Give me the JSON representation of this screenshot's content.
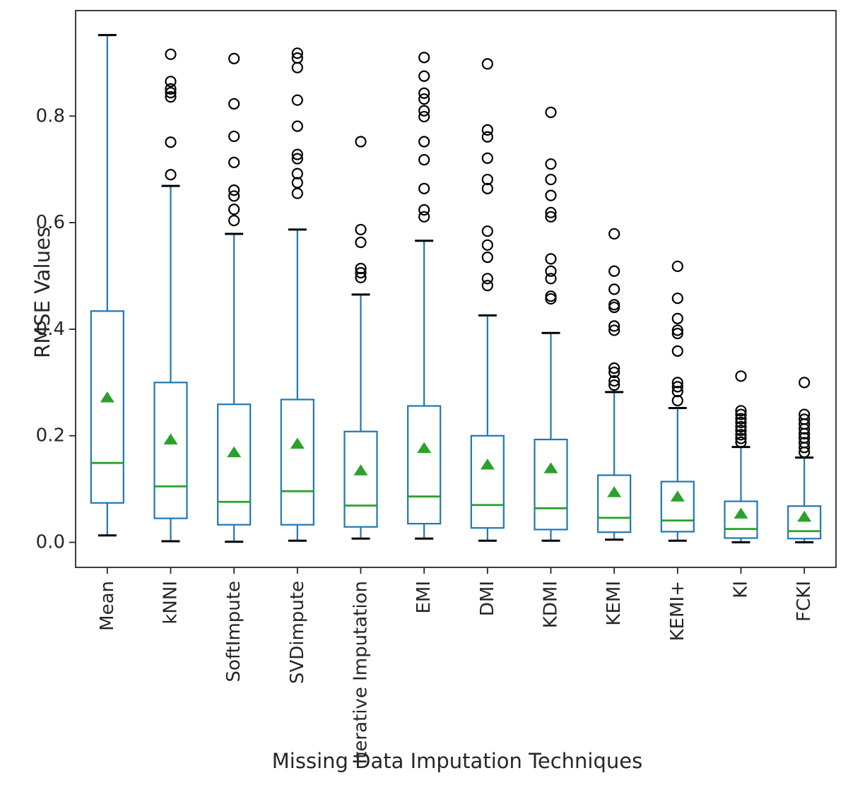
{
  "figure": {
    "background": "#ffffff"
  },
  "chart_data": {
    "type": "boxplot",
    "title": "",
    "xlabel": "Missing Data Imputation Techniques",
    "ylabel": "RMSE Values",
    "ylim": [
      -0.047,
      0.998
    ],
    "yticks": [
      0.0,
      0.2,
      0.4,
      0.6,
      0.8
    ],
    "grid": false,
    "legend": false,
    "show_means": true,
    "colors": {
      "box": "#1f77b4",
      "whisker": "#1f77b4",
      "cap": "#000000",
      "median": "#2ca02c",
      "mean_marker": "#2ca02c",
      "flier": "#000000",
      "axis": "#262626",
      "text": "#262626"
    },
    "categories": [
      "Mean",
      "kNNI",
      "SoftImpute",
      "SVDimpute",
      "Iterative Imputation",
      "EMI",
      "DMI",
      "KDMI",
      "KEMI",
      "KEMI+",
      "KI",
      "FCKI"
    ],
    "boxes": [
      {
        "label": "Mean",
        "whislo": 0.013,
        "q1": 0.074,
        "med": 0.149,
        "q3": 0.434,
        "whishi": 0.952,
        "mean": 0.272,
        "fliers": []
      },
      {
        "label": "kNNI",
        "whislo": 0.002,
        "q1": 0.045,
        "med": 0.105,
        "q3": 0.3,
        "whishi": 0.669,
        "mean": 0.193,
        "fliers": [
          0.916,
          0.865,
          0.851,
          0.844,
          0.836,
          0.751,
          0.69
        ]
      },
      {
        "label": "SoftImpute",
        "whislo": 0.001,
        "q1": 0.033,
        "med": 0.076,
        "q3": 0.259,
        "whishi": 0.579,
        "mean": 0.169,
        "fliers": [
          0.908,
          0.823,
          0.762,
          0.713,
          0.661,
          0.65,
          0.625,
          0.604
        ]
      },
      {
        "label": "SVDimpute",
        "whislo": 0.003,
        "q1": 0.033,
        "med": 0.096,
        "q3": 0.268,
        "whishi": 0.587,
        "mean": 0.185,
        "fliers": [
          0.918,
          0.909,
          0.891,
          0.83,
          0.781,
          0.728,
          0.72,
          0.692,
          0.675,
          0.655
        ]
      },
      {
        "label": "Iterative Imputation",
        "whislo": 0.007,
        "q1": 0.029,
        "med": 0.069,
        "q3": 0.208,
        "whishi": 0.465,
        "mean": 0.135,
        "fliers": [
          0.752,
          0.587,
          0.563,
          0.514,
          0.506,
          0.497
        ]
      },
      {
        "label": "EMI",
        "whislo": 0.007,
        "q1": 0.035,
        "med": 0.086,
        "q3": 0.256,
        "whishi": 0.566,
        "mean": 0.177,
        "fliers": [
          0.91,
          0.875,
          0.843,
          0.832,
          0.81,
          0.799,
          0.752,
          0.718,
          0.664,
          0.624,
          0.611
        ]
      },
      {
        "label": "DMI",
        "whislo": 0.003,
        "q1": 0.027,
        "med": 0.07,
        "q3": 0.2,
        "whishi": 0.426,
        "mean": 0.146,
        "fliers": [
          0.898,
          0.774,
          0.761,
          0.721,
          0.681,
          0.664,
          0.584,
          0.558,
          0.535,
          0.495,
          0.482
        ]
      },
      {
        "label": "KDMI",
        "whislo": 0.003,
        "q1": 0.024,
        "med": 0.064,
        "q3": 0.193,
        "whishi": 0.393,
        "mean": 0.139,
        "fliers": [
          0.807,
          0.71,
          0.681,
          0.651,
          0.619,
          0.611,
          0.532,
          0.509,
          0.495,
          0.462,
          0.457
        ]
      },
      {
        "label": "KEMI",
        "whislo": 0.005,
        "q1": 0.019,
        "med": 0.046,
        "q3": 0.126,
        "whishi": 0.282,
        "mean": 0.094,
        "fliers": [
          0.579,
          0.509,
          0.475,
          0.446,
          0.441,
          0.406,
          0.398,
          0.327,
          0.319,
          0.303,
          0.295
        ]
      },
      {
        "label": "KEMI+",
        "whislo": 0.003,
        "q1": 0.02,
        "med": 0.041,
        "q3": 0.114,
        "whishi": 0.252,
        "mean": 0.086,
        "fliers": [
          0.518,
          0.458,
          0.42,
          0.398,
          0.392,
          0.359,
          0.3,
          0.292,
          0.283,
          0.266
        ]
      },
      {
        "label": "KI",
        "whislo": 0.0,
        "q1": 0.008,
        "med": 0.025,
        "q3": 0.077,
        "whishi": 0.179,
        "mean": 0.054,
        "fliers": [
          0.312,
          0.247,
          0.24,
          0.232,
          0.225,
          0.217,
          0.21,
          0.202,
          0.195,
          0.188
        ]
      },
      {
        "label": "FCKI",
        "whislo": 0.0,
        "q1": 0.007,
        "med": 0.021,
        "q3": 0.068,
        "whishi": 0.159,
        "mean": 0.048,
        "fliers": [
          0.3,
          0.24,
          0.231,
          0.222,
          0.213,
          0.204,
          0.196,
          0.187,
          0.178,
          0.169
        ]
      }
    ]
  }
}
